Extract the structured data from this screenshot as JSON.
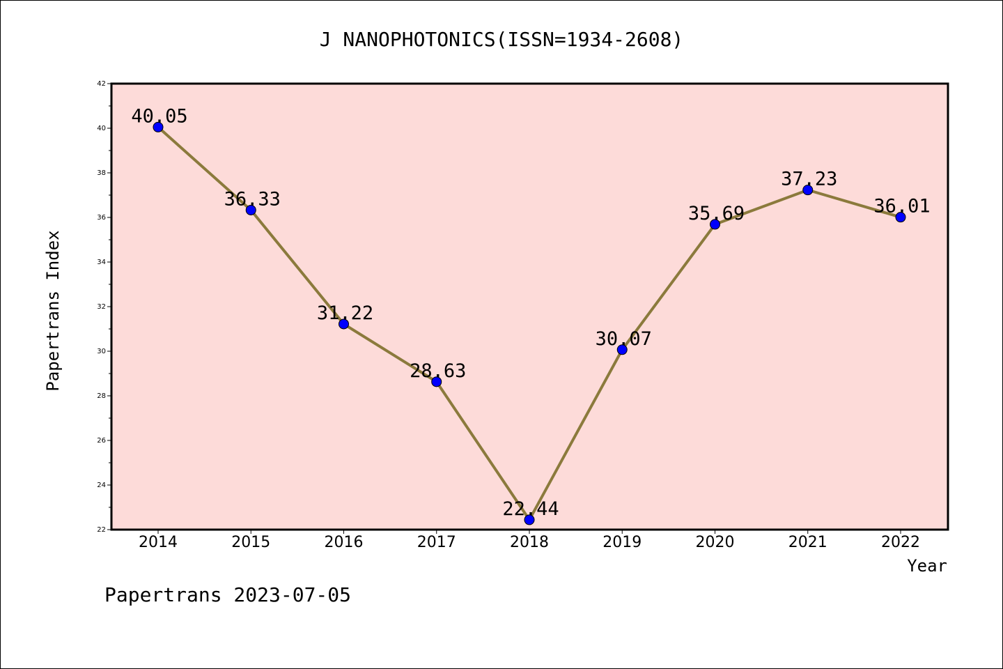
{
  "chart_data": {
    "type": "line",
    "title": "J NANOPHOTONICS(ISSN=1934-2608)",
    "xlabel": "Year",
    "ylabel": "Papertrans Index",
    "categories": [
      "2014",
      "2015",
      "2016",
      "2017",
      "2018",
      "2019",
      "2020",
      "2021",
      "2022"
    ],
    "values": [
      40.05,
      36.33,
      31.22,
      28.63,
      22.44,
      30.07,
      35.69,
      37.23,
      36.01
    ],
    "data_labels": [
      "40.05",
      "36.33",
      "31.22",
      "28.63",
      "22.44",
      "30.07",
      "35.69",
      "37.23",
      "36.01"
    ],
    "ylim": [
      22,
      42
    ],
    "yticks": [
      "22",
      "24",
      "26",
      "28",
      "30",
      "32",
      "34",
      "36",
      "38",
      "40",
      "42"
    ],
    "plot_background": "#fddbd9",
    "line_color": "#8b7a3c",
    "marker_color": "#0000ff",
    "grid": false
  },
  "footer": {
    "text": "Papertrans 2023-07-05"
  }
}
